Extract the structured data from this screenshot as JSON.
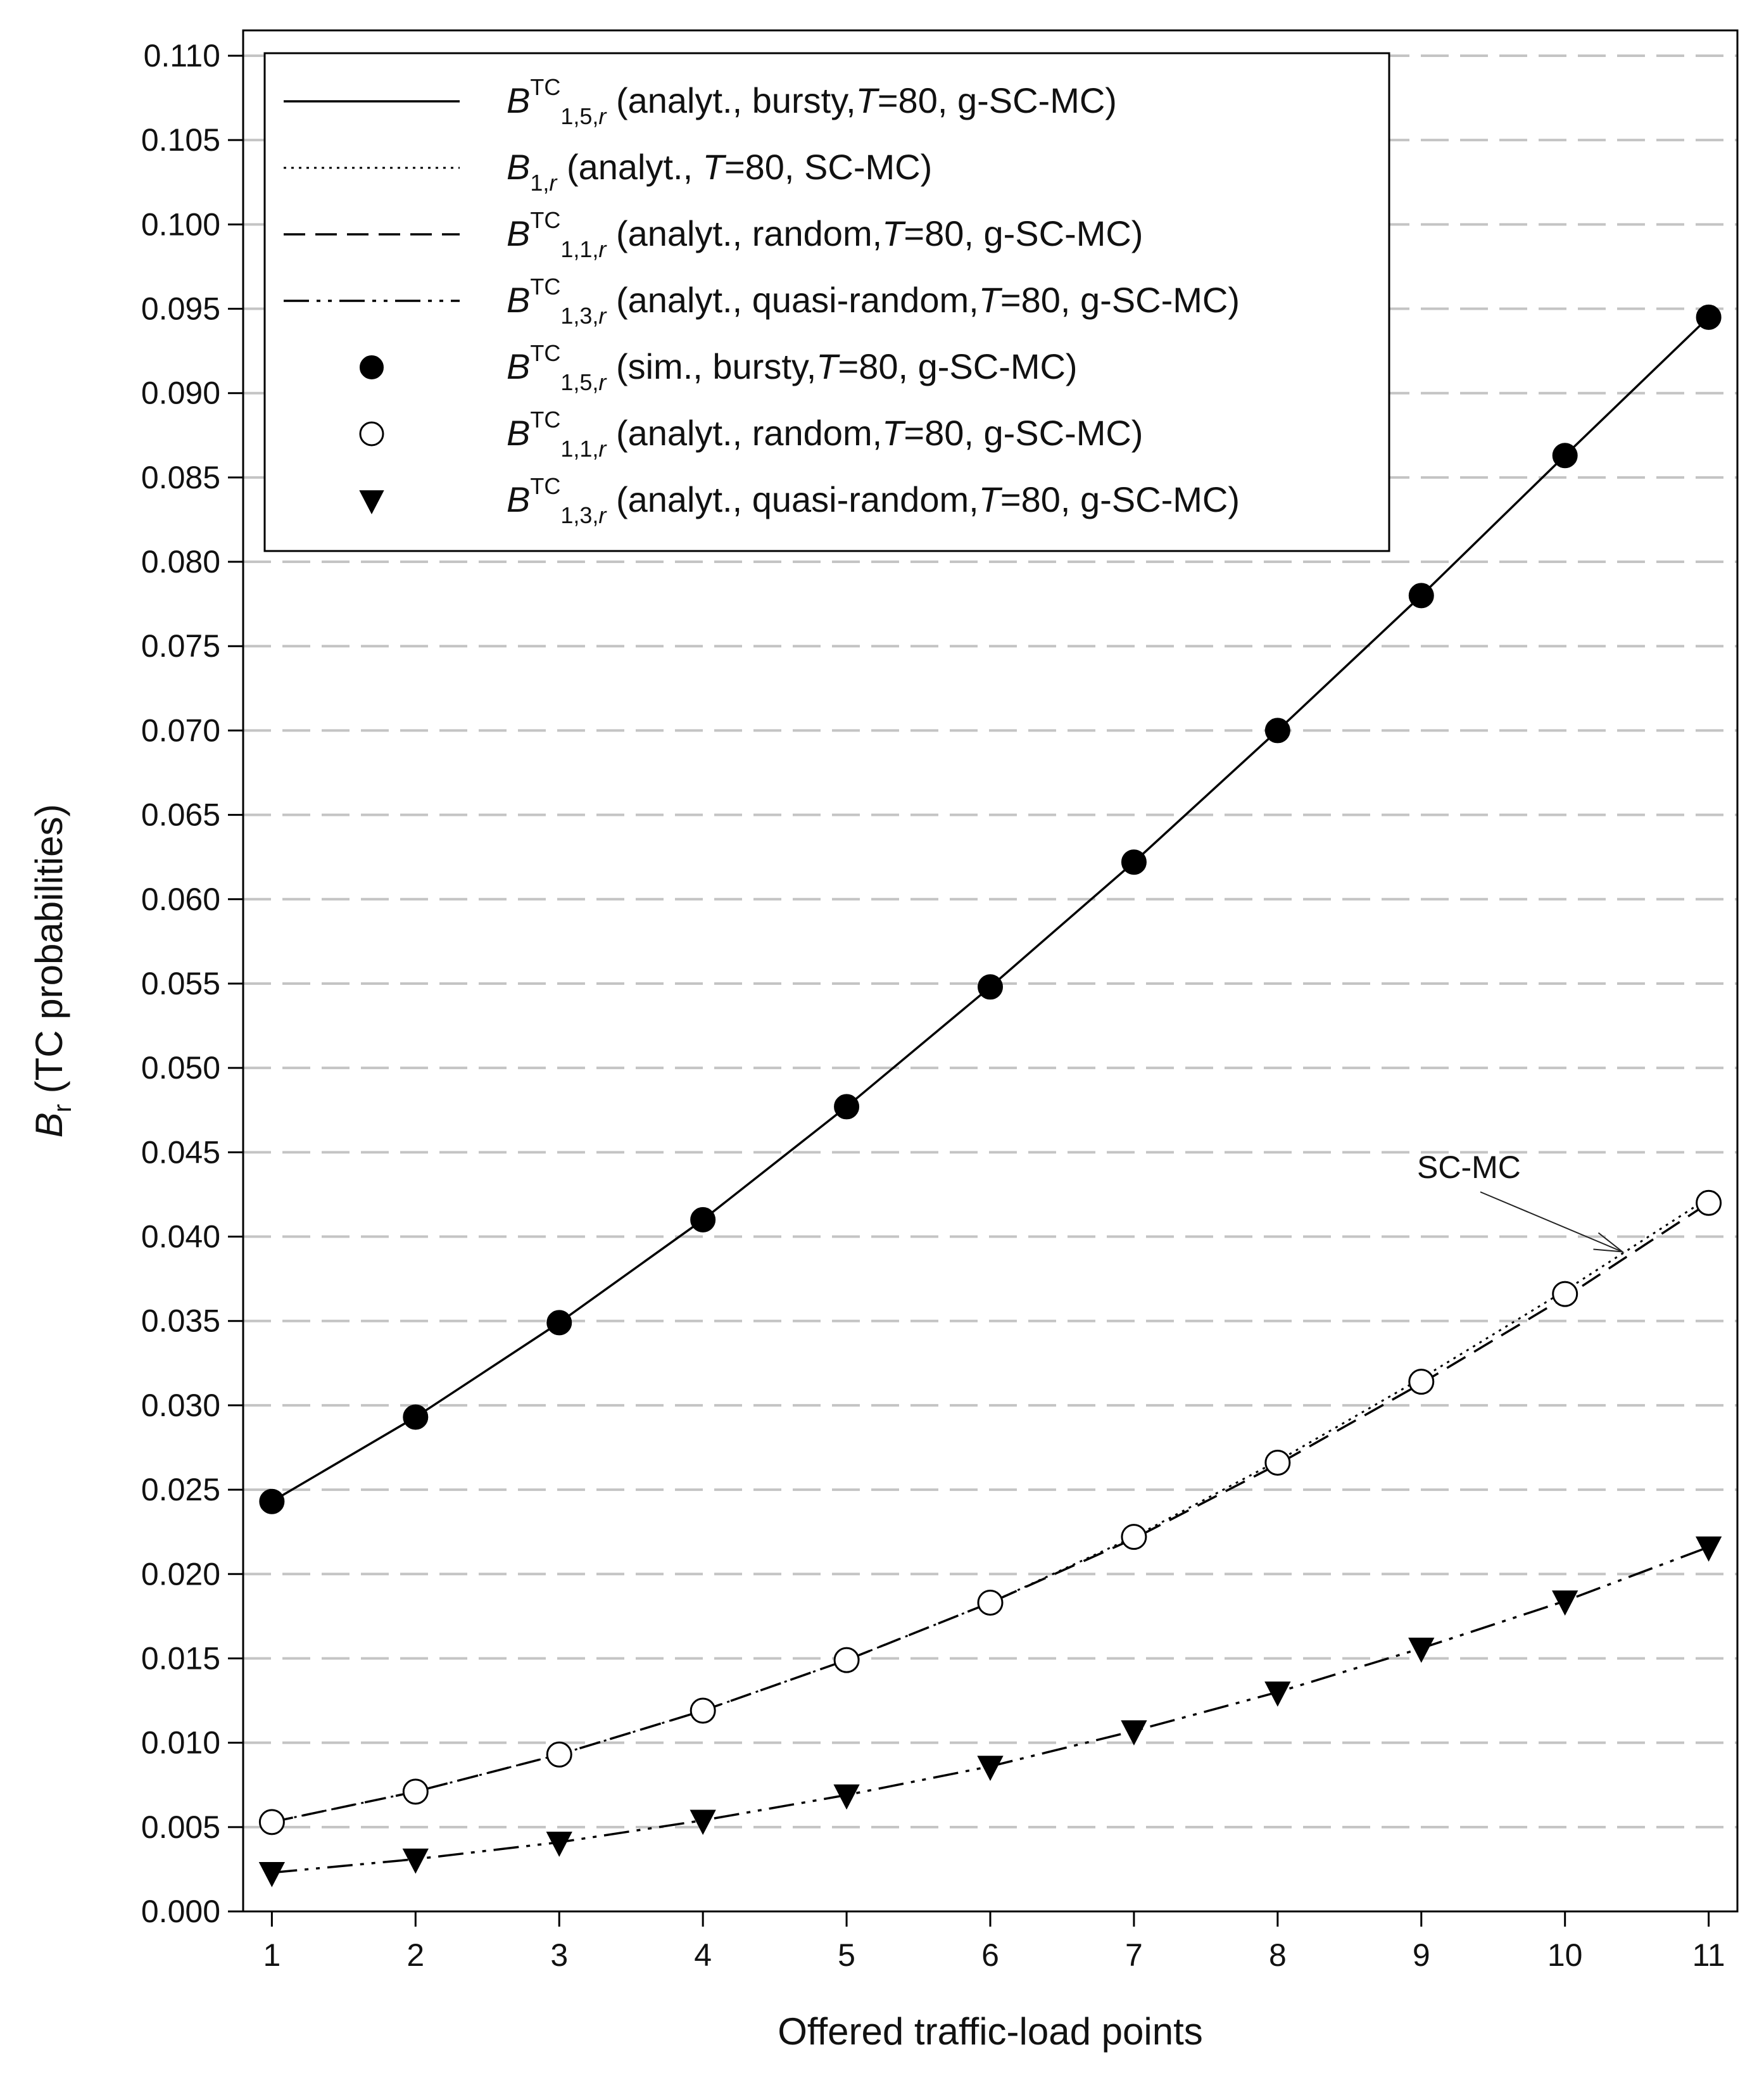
{
  "chart_data": {
    "type": "line",
    "title": "",
    "xlabel": "Offered traffic-load points",
    "ylabel_symbol": "B",
    "ylabel_subscript": "r",
    "ylabel_rest": " (TC probabilities)",
    "xlim": [
      0.8,
      11.2
    ],
    "ylim": [
      0,
      0.1115
    ],
    "x_ticks": [
      1,
      2,
      3,
      4,
      5,
      6,
      7,
      8,
      9,
      10,
      11
    ],
    "y_ticks": [
      0.0,
      0.005,
      0.01,
      0.015,
      0.02,
      0.025,
      0.03,
      0.035,
      0.04,
      0.045,
      0.05,
      0.055,
      0.06,
      0.065,
      0.07,
      0.075,
      0.08,
      0.085,
      0.09,
      0.095,
      0.1,
      0.105,
      0.11
    ],
    "y_tick_labels": [
      "0.000",
      "0.005",
      "0.010",
      "0.015",
      "0.020",
      "0.025",
      "0.030",
      "0.035",
      "0.040",
      "0.045",
      "0.050",
      "0.055",
      "0.060",
      "0.065",
      "0.070",
      "0.075",
      "0.080",
      "0.085",
      "0.090",
      "0.095",
      "0.100",
      "0.105",
      "0.110"
    ],
    "grid": "horizontal-dashed",
    "legend_position": "top-left",
    "x": [
      1,
      2,
      3,
      4,
      5,
      6,
      7,
      8,
      9,
      10,
      11
    ],
    "series": [
      {
        "name": "B TC 1,5,r analyt. bursty T=80 g-SC-MC",
        "style": "solid",
        "marker": "none",
        "values": [
          0.0243,
          0.0293,
          0.0349,
          0.041,
          0.0477,
          0.0548,
          0.0622,
          0.07,
          0.078,
          0.0863,
          0.0945
        ],
        "legend": {
          "symbol": "B",
          "sup": "TC",
          "sub": "1,5,",
          "sub_italic": "r",
          "text_a": " (analyt., bursty,",
          "T": "T",
          "text_b": "=80, g-SC-MC)"
        }
      },
      {
        "name": "B 1,r analyt. T=80 SC-MC",
        "style": "dotted",
        "marker": "none",
        "values": [
          0.0053,
          0.0071,
          0.0093,
          0.0119,
          0.0149,
          0.0183,
          0.0222,
          0.0267,
          0.0316,
          0.0368,
          0.0423
        ],
        "legend": {
          "symbol": "B",
          "sup": "",
          "sub": "1,",
          "sub_italic": "r",
          "text_a": "      (analyt., ",
          "T": "T",
          "text_b": "=80, SC-MC)"
        }
      },
      {
        "name": "B TC 1,1,r analyt. random T=80 g-SC-MC",
        "style": "dashed",
        "marker": "none",
        "values": [
          0.0053,
          0.0071,
          0.0093,
          0.0119,
          0.0149,
          0.0183,
          0.0221,
          0.0265,
          0.0313,
          0.0364,
          0.042
        ],
        "legend": {
          "symbol": "B",
          "sup": "TC",
          "sub": "1,1,",
          "sub_italic": "r",
          "text_a": " (analyt., random,",
          "T": "T",
          "text_b": "=80, g-SC-MC)"
        }
      },
      {
        "name": "B TC 1,3,r analyt. quasi-random T=80 g-SC-MC",
        "style": "dash-dot-dot",
        "marker": "none",
        "values": [
          0.0023,
          0.0031,
          0.0041,
          0.0054,
          0.0069,
          0.0086,
          0.0107,
          0.013,
          0.0156,
          0.0184,
          0.0216
        ],
        "legend": {
          "symbol": "B",
          "sup": "TC",
          "sub": "1,3,",
          "sub_italic": "r",
          "text_a": " (analyt., quasi-random,",
          "T": "T",
          "text_b": "=80, g-SC-MC)"
        }
      },
      {
        "name": "B TC 1,5,r sim. bursty T=80 g-SC-MC",
        "style": "none",
        "marker": "filled-circle",
        "values": [
          0.0243,
          0.0293,
          0.0349,
          0.041,
          0.0477,
          0.0548,
          0.0622,
          0.07,
          0.078,
          0.0863,
          0.0945
        ],
        "legend": {
          "symbol": "B",
          "sup": "TC",
          "sub": "1,5,",
          "sub_italic": "r",
          "text_a": " (sim., bursty,",
          "T": "T",
          "text_b": "=80, g-SC-MC)"
        }
      },
      {
        "name": "B TC 1,1,r analyt. random T=80 g-SC-MC (markers)",
        "style": "none",
        "marker": "open-circle",
        "values": [
          0.0053,
          0.0071,
          0.0093,
          0.0119,
          0.0149,
          0.0183,
          0.0222,
          0.0266,
          0.0314,
          0.0366,
          0.042
        ],
        "legend": {
          "symbol": "B",
          "sup": "TC",
          "sub": "1,1,",
          "sub_italic": "r",
          "text_a": " (analyt., random,",
          "T": "T",
          "text_b": "=80, g-SC-MC)"
        }
      },
      {
        "name": "B TC 1,3,r analyt. quasi-random T=80 g-SC-MC (markers)",
        "style": "none",
        "marker": "filled-triangle-down",
        "values": [
          0.0023,
          0.0031,
          0.0041,
          0.0054,
          0.0069,
          0.0086,
          0.0107,
          0.013,
          0.0156,
          0.0184,
          0.0216
        ],
        "legend": {
          "symbol": "B",
          "sup": "TC",
          "sub": "1,3,",
          "sub_italic": "r",
          "text_a": " (analyt., quasi-random,",
          "T": "T",
          "text_b": "=80, g-SC-MC)"
        }
      }
    ],
    "annotations": [
      {
        "text": "SC-MC",
        "target_x": 10.4,
        "target_y": 0.0391
      }
    ]
  }
}
